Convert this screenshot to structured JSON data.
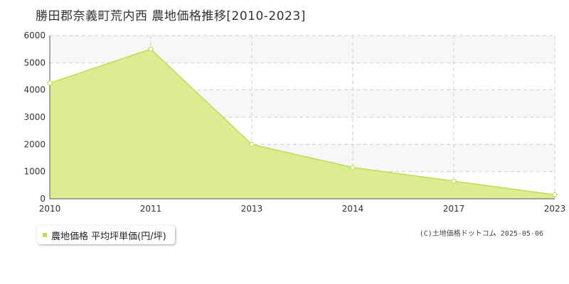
{
  "chart_data": {
    "type": "area",
    "title": "勝田郡奈義町荒内西 農地価格推移[2010-2023]",
    "categories": [
      "2010",
      "2011",
      "2013",
      "2014",
      "2017",
      "2023"
    ],
    "series": [
      {
        "name": "農地価格 平均坪単価(円/坪)",
        "values": [
          4250,
          5500,
          2000,
          1150,
          650,
          150
        ]
      }
    ],
    "yticks": [
      "0",
      "1000",
      "2000",
      "3000",
      "4000",
      "5000",
      "6000"
    ],
    "ylim": [
      0,
      6000
    ],
    "xlabel": "",
    "ylabel": "",
    "grid": true,
    "legend_position": "bottom-left",
    "colors": {
      "fill": "#dcec91",
      "line": "#bfdc55",
      "marker_fill": "#ffffff",
      "band": "#f7f7fa",
      "grid": "#cccccc"
    }
  },
  "legend": {
    "label": "農地価格 平均坪単価(円/坪)"
  },
  "footer": {
    "copyright": "(C)土地価格ドットコム 2025-05-06"
  }
}
